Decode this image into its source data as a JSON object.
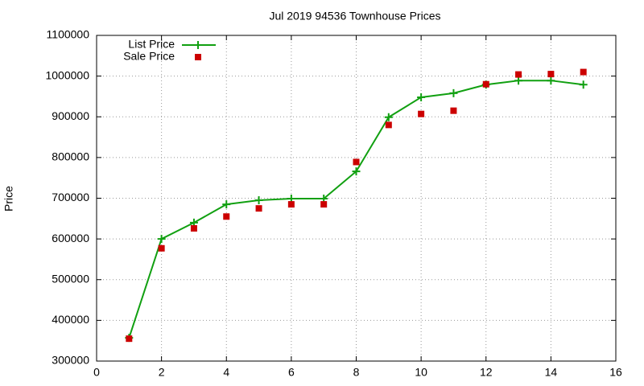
{
  "chart_data": {
    "type": "line",
    "title": "Jul 2019 94536 Townhouse Prices",
    "ylabel": "Price",
    "x": [
      1,
      2,
      3,
      4,
      5,
      6,
      7,
      8,
      9,
      10,
      11,
      12,
      13,
      14,
      15
    ],
    "series": [
      {
        "name": "List Price",
        "color": "#11a011",
        "mode": "lines+markers",
        "values": [
          357000,
          600000,
          640000,
          685000,
          695000,
          699000,
          699000,
          766000,
          899000,
          948000,
          958000,
          979000,
          989000,
          989000,
          979000
        ]
      },
      {
        "name": "Sale Price",
        "color": "#cc0000",
        "mode": "markers",
        "values": [
          355000,
          577000,
          626000,
          655000,
          675000,
          685000,
          685000,
          789000,
          880000,
          907000,
          915000,
          980000,
          1004000,
          1005000,
          1010000
        ]
      }
    ],
    "xlim": [
      0,
      16
    ],
    "xticks": [
      0,
      2,
      4,
      6,
      8,
      10,
      12,
      14,
      16
    ],
    "ylim": [
      300000,
      1100000
    ],
    "yticks": [
      300000,
      400000,
      500000,
      600000,
      700000,
      800000,
      900000,
      1000000,
      1100000
    ],
    "grid": true,
    "legend": "top-left"
  }
}
